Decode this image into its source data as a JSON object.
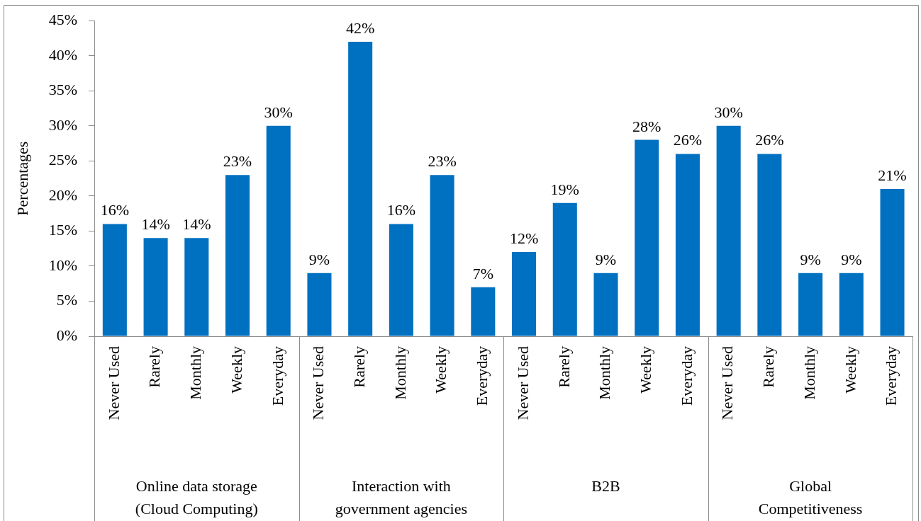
{
  "chart_data": {
    "type": "bar",
    "ylabel": "Percentages",
    "categories": [
      "Never Used",
      "Rarely",
      "Monthly",
      "Weekly",
      "Everyday",
      "Never Used",
      "Rarely",
      "Monthly",
      "Weekly",
      "Everyday",
      "Never Used",
      "Rarely",
      "Monthly",
      "Weekly",
      "Everyday",
      "Never Used",
      "Rarely",
      "Monthly",
      "Weekly",
      "Everyday"
    ],
    "values": [
      16,
      14,
      14,
      23,
      30,
      9,
      42,
      16,
      23,
      7,
      12,
      19,
      9,
      28,
      26,
      30,
      26,
      9,
      9,
      21
    ],
    "value_labels": [
      "16%",
      "14%",
      "14%",
      "23%",
      "30%",
      "9%",
      "42%",
      "16%",
      "23%",
      "7%",
      "12%",
      "19%",
      "9%",
      "28%",
      "26%",
      "30%",
      "26%",
      "9%",
      "9%",
      "21%"
    ],
    "color": "#0070c0",
    "ylim": [
      0,
      45
    ],
    "yticks": [
      {
        "value": 0,
        "label": "0%"
      },
      {
        "value": 5,
        "label": "5%"
      },
      {
        "value": 10,
        "label": "10%"
      },
      {
        "value": 15,
        "label": "15%"
      },
      {
        "value": 20,
        "label": "20%"
      },
      {
        "value": 25,
        "label": "25%"
      },
      {
        "value": 30,
        "label": "30%"
      },
      {
        "value": 35,
        "label": "35%"
      },
      {
        "value": 40,
        "label": "40%"
      },
      {
        "value": 45,
        "label": "45%"
      }
    ],
    "grid": false,
    "legend": false,
    "annotations": [
      "Online data storage (Cloud Computing)",
      "Interaction with government agencies",
      "B2B",
      "Global Competitiveness"
    ]
  }
}
